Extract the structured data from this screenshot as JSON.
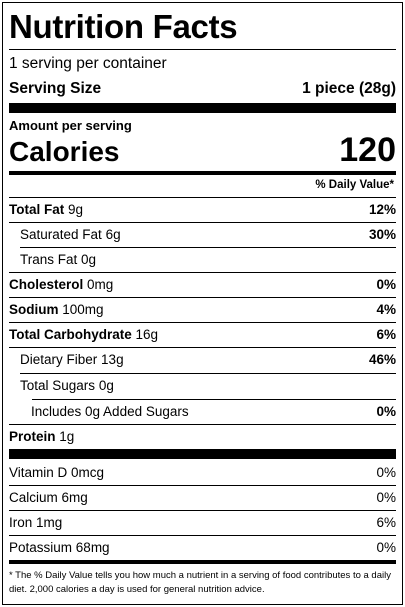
{
  "title": "Nutrition Facts",
  "servings_per_container": "1 serving per container",
  "serving_size": {
    "label": "Serving Size",
    "value": "1 piece (28g)"
  },
  "amount_per_serving": "Amount per serving",
  "calories": {
    "label": "Calories",
    "value": "120"
  },
  "daily_value_header": "% Daily Value*",
  "nutrients": [
    {
      "name": "Total Fat",
      "amount": "9g",
      "dv": "12%"
    },
    {
      "name": "Saturated Fat",
      "amount": "6g",
      "dv": "30%"
    },
    {
      "name": "Trans Fat",
      "amount": "0g",
      "dv": ""
    },
    {
      "name": "Cholesterol",
      "amount": "0mg",
      "dv": "0%"
    },
    {
      "name": "Sodium",
      "amount": "100mg",
      "dv": "4%"
    },
    {
      "name": "Total Carbohydrate",
      "amount": "16g",
      "dv": "6%"
    },
    {
      "name": "Dietary Fiber",
      "amount": "13g",
      "dv": "46%"
    },
    {
      "name": "Total Sugars",
      "amount": "0g",
      "dv": ""
    },
    {
      "name": "Includes 0g Added Sugars",
      "amount": "",
      "dv": "0%"
    },
    {
      "name": "Protein",
      "amount": "1g",
      "dv": ""
    }
  ],
  "vitamins": [
    {
      "name": "Vitamin D",
      "amount": "0mcg",
      "dv": "0%"
    },
    {
      "name": "Calcium",
      "amount": "6mg",
      "dv": "0%"
    },
    {
      "name": "Iron",
      "amount": "1mg",
      "dv": "6%"
    },
    {
      "name": "Potassium",
      "amount": "68mg",
      "dv": "0%"
    }
  ],
  "footnote": "* The % Daily Value tells you how much a nutrient in a serving of food contributes to a daily diet. 2,000 calories a day is used for general nutrition advice."
}
